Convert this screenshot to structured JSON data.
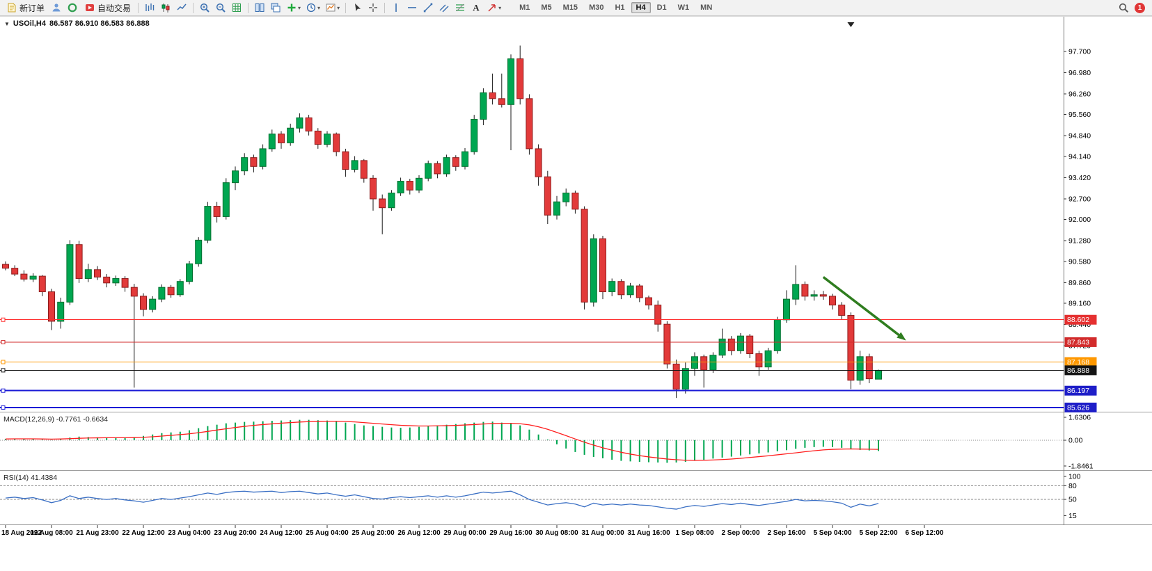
{
  "app": {
    "toolbar": {
      "items": [
        {
          "kind": "button",
          "name": "new-order-button",
          "icon": "new-order-icon",
          "label": "新订单"
        },
        {
          "kind": "icon",
          "name": "accounts-icon"
        },
        {
          "kind": "icon",
          "name": "market-watch-icon"
        },
        {
          "kind": "button",
          "name": "auto-trading-button",
          "icon": "auto-trading-icon",
          "label": "自动交易"
        },
        {
          "kind": "sep"
        },
        {
          "kind": "icon",
          "name": "bar-chart-icon"
        },
        {
          "kind": "icon",
          "name": "candlestick-chart-icon"
        },
        {
          "kind": "icon",
          "name": "line-chart-icon"
        },
        {
          "kind": "sep"
        },
        {
          "kind": "icon",
          "name": "zoom-in-icon"
        },
        {
          "kind": "icon",
          "name": "zoom-out-icon"
        },
        {
          "kind": "icon",
          "name": "grid-icon"
        },
        {
          "kind": "sep"
        },
        {
          "kind": "icon",
          "name": "tile-windows-icon"
        },
        {
          "kind": "icon",
          "name": "cascade-windows-icon"
        },
        {
          "kind": "icon",
          "name": "add-indicator-icon",
          "caret": true
        },
        {
          "kind": "icon",
          "name": "periods-icon",
          "caret": true
        },
        {
          "kind": "icon",
          "name": "templates-icon",
          "caret": true
        },
        {
          "kind": "sep"
        },
        {
          "kind": "icon",
          "name": "cursor-icon"
        },
        {
          "kind": "icon",
          "name": "crosshair-icon"
        },
        {
          "kind": "sep"
        },
        {
          "kind": "icon",
          "name": "vertical-line-icon"
        },
        {
          "kind": "icon",
          "name": "horizontal-line-icon"
        },
        {
          "kind": "icon",
          "name": "trendline-icon"
        },
        {
          "kind": "icon",
          "name": "channel-icon"
        },
        {
          "kind": "icon",
          "name": "fibonacci-icon"
        },
        {
          "kind": "icon",
          "name": "text-label-icon"
        },
        {
          "kind": "icon",
          "name": "arrows-tool-icon",
          "caret": true
        },
        {
          "kind": "tfgroup"
        },
        {
          "kind": "spacer"
        },
        {
          "kind": "icon",
          "name": "search-icon"
        },
        {
          "kind": "badge",
          "name": "notifications-badge",
          "label": "1"
        }
      ],
      "timeframes": [
        {
          "label": "M1"
        },
        {
          "label": "M5"
        },
        {
          "label": "M15"
        },
        {
          "label": "M30"
        },
        {
          "label": "H1"
        },
        {
          "label": "H4",
          "active": true
        },
        {
          "label": "D1"
        },
        {
          "label": "W1"
        },
        {
          "label": "MN"
        }
      ]
    }
  },
  "chart": {
    "title": "USOil,H4",
    "ohlc_text": "86.587 86.910 86.583 86.888"
  },
  "colors": {
    "bull": "#00A651",
    "bull_edge": "#00702F",
    "bear": "#E23A3A",
    "bear_edge": "#8F1D1D",
    "wick": "#1a1a1a",
    "macd_hist": "#00A651",
    "macd_signal": "#FF1E1E",
    "rsi_line": "#3A6FC4",
    "panel_sep": "#9E9E9E",
    "axis_text": "#000000",
    "arrow": "#2F7D1F",
    "level_dash": "#888888"
  },
  "chart_data": {
    "type": "candlestick",
    "symbol": "USOil",
    "period": "H4",
    "current_ohlc": {
      "open": "86.587",
      "high": "86.910",
      "low": "86.583",
      "close": "86.888"
    },
    "price_ticks": [
      "97.700",
      "96.980",
      "96.260",
      "95.560",
      "94.840",
      "94.140",
      "93.420",
      "92.700",
      "92.000",
      "91.280",
      "90.580",
      "89.860",
      "89.160",
      "88.440",
      "87.720"
    ],
    "ylim": [
      85.36,
      98.69
    ],
    "candles": [
      [
        90.48,
        90.58,
        90.28,
        90.35
      ],
      [
        90.35,
        90.45,
        90.08,
        90.15
      ],
      [
        90.15,
        90.28,
        89.9,
        89.98
      ],
      [
        89.98,
        90.18,
        89.88,
        90.08
      ],
      [
        90.08,
        90.12,
        89.4,
        89.55
      ],
      [
        89.55,
        89.65,
        88.25,
        88.55
      ],
      [
        88.55,
        89.35,
        88.3,
        89.2
      ],
      [
        89.2,
        91.3,
        89.1,
        91.15
      ],
      [
        91.15,
        91.28,
        89.85,
        90.0
      ],
      [
        90.0,
        90.5,
        89.88,
        90.3
      ],
      [
        90.3,
        90.42,
        89.95,
        90.05
      ],
      [
        90.05,
        90.15,
        89.7,
        89.85
      ],
      [
        89.85,
        90.1,
        89.75,
        90.0
      ],
      [
        90.0,
        90.08,
        89.55,
        89.7
      ],
      [
        89.7,
        89.82,
        86.3,
        89.4
      ],
      [
        89.4,
        89.5,
        88.72,
        88.95
      ],
      [
        88.95,
        89.4,
        88.85,
        89.3
      ],
      [
        89.3,
        89.8,
        89.2,
        89.7
      ],
      [
        89.7,
        89.78,
        89.35,
        89.45
      ],
      [
        89.45,
        89.98,
        89.38,
        89.9
      ],
      [
        89.9,
        90.6,
        89.8,
        90.5
      ],
      [
        90.5,
        91.4,
        90.4,
        91.3
      ],
      [
        91.3,
        92.6,
        91.2,
        92.45
      ],
      [
        92.45,
        92.6,
        91.9,
        92.1
      ],
      [
        92.1,
        93.4,
        92.0,
        93.25
      ],
      [
        93.25,
        93.8,
        93.0,
        93.65
      ],
      [
        93.65,
        94.25,
        93.5,
        94.1
      ],
      [
        94.1,
        94.2,
        93.6,
        93.8
      ],
      [
        93.8,
        94.55,
        93.7,
        94.4
      ],
      [
        94.4,
        95.05,
        94.3,
        94.9
      ],
      [
        94.9,
        95.0,
        94.4,
        94.6
      ],
      [
        94.6,
        95.25,
        94.5,
        95.1
      ],
      [
        95.1,
        95.6,
        94.95,
        95.45
      ],
      [
        95.45,
        95.55,
        94.85,
        95.0
      ],
      [
        95.0,
        95.1,
        94.4,
        94.55
      ],
      [
        94.55,
        95.0,
        94.45,
        94.9
      ],
      [
        94.9,
        94.95,
        94.15,
        94.3
      ],
      [
        94.3,
        94.4,
        93.45,
        93.7
      ],
      [
        93.7,
        94.15,
        93.6,
        94.0
      ],
      [
        94.0,
        94.05,
        93.25,
        93.4
      ],
      [
        93.4,
        93.5,
        92.3,
        92.7
      ],
      [
        92.7,
        92.85,
        91.5,
        92.4
      ],
      [
        92.4,
        93.0,
        92.3,
        92.9
      ],
      [
        92.9,
        93.42,
        92.8,
        93.3
      ],
      [
        93.3,
        93.38,
        92.85,
        93.0
      ],
      [
        93.0,
        93.5,
        92.9,
        93.4
      ],
      [
        93.4,
        94.0,
        93.3,
        93.9
      ],
      [
        93.9,
        93.98,
        93.4,
        93.55
      ],
      [
        93.55,
        94.2,
        93.45,
        94.1
      ],
      [
        94.1,
        94.18,
        93.65,
        93.8
      ],
      [
        93.8,
        94.42,
        93.7,
        94.3
      ],
      [
        94.3,
        95.55,
        94.2,
        95.4
      ],
      [
        95.4,
        96.45,
        95.2,
        96.3
      ],
      [
        96.3,
        96.95,
        95.9,
        96.1
      ],
      [
        96.1,
        96.95,
        95.8,
        95.9
      ],
      [
        95.9,
        97.6,
        94.35,
        97.45
      ],
      [
        97.45,
        97.9,
        95.9,
        96.1
      ],
      [
        96.1,
        96.25,
        94.2,
        94.4
      ],
      [
        94.4,
        94.55,
        93.15,
        93.45
      ],
      [
        93.45,
        93.65,
        91.85,
        92.15
      ],
      [
        92.15,
        92.8,
        92.0,
        92.6
      ],
      [
        92.6,
        93.05,
        92.45,
        92.9
      ],
      [
        92.9,
        92.98,
        92.2,
        92.35
      ],
      [
        92.35,
        92.45,
        88.95,
        89.2
      ],
      [
        89.2,
        91.5,
        89.05,
        91.35
      ],
      [
        91.35,
        91.45,
        89.3,
        89.55
      ],
      [
        89.55,
        90.0,
        89.4,
        89.9
      ],
      [
        89.9,
        89.98,
        89.3,
        89.45
      ],
      [
        89.45,
        89.85,
        89.35,
        89.75
      ],
      [
        89.75,
        89.82,
        89.2,
        89.35
      ],
      [
        89.35,
        89.42,
        88.95,
        89.1
      ],
      [
        89.1,
        89.25,
        88.2,
        88.45
      ],
      [
        88.45,
        88.55,
        86.95,
        87.1
      ],
      [
        87.1,
        87.25,
        85.95,
        86.25
      ],
      [
        86.25,
        87.15,
        86.1,
        86.95
      ],
      [
        86.95,
        87.5,
        86.7,
        87.35
      ],
      [
        87.35,
        87.42,
        86.3,
        86.9
      ],
      [
        86.9,
        87.5,
        86.8,
        87.4
      ],
      [
        87.4,
        88.3,
        87.3,
        87.95
      ],
      [
        87.95,
        88.05,
        87.4,
        87.55
      ],
      [
        87.55,
        88.15,
        87.45,
        88.05
      ],
      [
        88.05,
        88.12,
        87.3,
        87.45
      ],
      [
        87.45,
        87.55,
        86.7,
        87.0
      ],
      [
        87.0,
        87.65,
        86.9,
        87.55
      ],
      [
        87.55,
        88.7,
        87.45,
        88.6
      ],
      [
        88.6,
        89.6,
        88.5,
        89.3
      ],
      [
        89.3,
        90.45,
        89.1,
        89.8
      ],
      [
        89.8,
        89.9,
        89.25,
        89.4
      ],
      [
        89.4,
        89.6,
        89.25,
        89.45
      ],
      [
        89.45,
        89.58,
        89.28,
        89.4
      ],
      [
        89.4,
        89.48,
        88.95,
        89.1
      ],
      [
        89.1,
        89.2,
        88.6,
        88.75
      ],
      [
        88.75,
        88.85,
        86.25,
        86.55
      ],
      [
        86.55,
        87.55,
        86.4,
        87.35
      ],
      [
        87.35,
        87.45,
        86.45,
        86.6
      ],
      [
        86.587,
        86.91,
        86.583,
        86.888
      ]
    ],
    "time_ticks": {
      "step": 5,
      "labels": [
        "18 Aug 2022",
        "19 Aug 08:00",
        "21 Aug 23:00",
        "22 Aug 12:00",
        "23 Aug 04:00",
        "23 Aug 20:00",
        "24 Aug 12:00",
        "25 Aug 04:00",
        "25 Aug 20:00",
        "26 Aug 12:00",
        "29 Aug 00:00",
        "29 Aug 16:00",
        "30 Aug 08:00",
        "31 Aug 00:00",
        "31 Aug 16:00",
        "1 Sep 08:00",
        "2 Sep 00:00",
        "2 Sep 16:00",
        "5 Sep 04:00",
        "5 Sep 22:00",
        "6 Sep 12:00"
      ]
    },
    "hlines": [
      {
        "price": 88.602,
        "label": "88.602",
        "color": "#FF2D2D",
        "label_bg": "#E53030",
        "lw": 1
      },
      {
        "price": 87.843,
        "label": "87.843",
        "color": "#D22B2B",
        "label_bg": "#D22B2B",
        "lw": 1
      },
      {
        "price": 87.168,
        "label": "87.168",
        "color": "#FF9800",
        "label_bg": "#FF9800",
        "lw": 1
      },
      {
        "price": 86.888,
        "label": "86.888",
        "color": "#141414",
        "label_bg": "#141414",
        "lw": 1
      },
      {
        "price": 86.197,
        "label": "86.197",
        "color": "#1A1AD6",
        "label_bg": "#1E1EC8",
        "lw": 2
      },
      {
        "price": 85.626,
        "label": "85.626",
        "color": "#1A1AD6",
        "label_bg": "#1E1EC8",
        "lw": 2
      }
    ],
    "arrow": {
      "from": {
        "index": 89,
        "price": 90.05
      },
      "to": {
        "index": 98,
        "price": 87.9
      }
    },
    "shift_marker_index": 92,
    "macd": {
      "label": "MACD(12,26,9)",
      "values_text": "-0.7761 -0.6634",
      "scale_labels": [
        {
          "value": 1.6306,
          "text": "1.6306"
        },
        {
          "value": 0,
          "text": "0.00"
        },
        {
          "value": -1.8461,
          "text": "-1.8461"
        }
      ],
      "histogram": [
        0.08,
        0.1,
        0.08,
        0.07,
        0.04,
        0.02,
        0.1,
        0.18,
        0.25,
        0.22,
        0.2,
        0.18,
        0.15,
        0.18,
        0.22,
        0.3,
        0.4,
        0.5,
        0.55,
        0.6,
        0.7,
        0.85,
        1.0,
        1.1,
        1.2,
        1.25,
        1.3,
        1.32,
        1.35,
        1.38,
        1.4,
        1.42,
        1.45,
        1.45,
        1.42,
        1.4,
        1.35,
        1.25,
        1.15,
        1.05,
        1.0,
        0.95,
        0.9,
        0.88,
        0.9,
        0.95,
        1.0,
        1.05,
        1.1,
        1.15,
        1.2,
        1.25,
        1.3,
        1.32,
        1.25,
        1.18,
        1.05,
        0.75,
        0.4,
        0.05,
        -0.3,
        -0.6,
        -0.85,
        -1.05,
        -1.2,
        -1.3,
        -1.4,
        -1.48,
        -1.52,
        -1.55,
        -1.58,
        -1.6,
        -1.62,
        -1.6,
        -1.55,
        -1.48,
        -1.4,
        -1.32,
        -1.25,
        -1.18,
        -1.1,
        -1.02,
        -0.95,
        -0.88,
        -0.8,
        -0.72,
        -0.62,
        -0.55,
        -0.5,
        -0.48,
        -0.5,
        -0.55,
        -0.65,
        -0.7,
        -0.74,
        -0.7761
      ],
      "signal": [
        0.08,
        0.09,
        0.09,
        0.09,
        0.08,
        0.07,
        0.08,
        0.1,
        0.13,
        0.15,
        0.16,
        0.17,
        0.17,
        0.17,
        0.18,
        0.2,
        0.24,
        0.29,
        0.34,
        0.39,
        0.45,
        0.53,
        0.62,
        0.72,
        0.81,
        0.9,
        0.98,
        1.05,
        1.11,
        1.16,
        1.21,
        1.25,
        1.29,
        1.32,
        1.34,
        1.35,
        1.35,
        1.33,
        1.3,
        1.25,
        1.2,
        1.15,
        1.1,
        1.06,
        1.03,
        1.01,
        1.01,
        1.02,
        1.03,
        1.05,
        1.08,
        1.11,
        1.15,
        1.18,
        1.2,
        1.2,
        1.17,
        1.09,
        0.95,
        0.77,
        0.55,
        0.32,
        0.08,
        -0.15,
        -0.36,
        -0.55,
        -0.72,
        -0.87,
        -1.0,
        -1.11,
        -1.2,
        -1.28,
        -1.35,
        -1.4,
        -1.44,
        -1.45,
        -1.44,
        -1.42,
        -1.39,
        -1.35,
        -1.3,
        -1.24,
        -1.18,
        -1.12,
        -1.05,
        -0.98,
        -0.91,
        -0.83,
        -0.76,
        -0.7,
        -0.66,
        -0.64,
        -0.63,
        -0.64,
        -0.65,
        -0.6634
      ]
    },
    "rsi": {
      "label": "RSI(14)",
      "value_text": "41.4384",
      "scale_labels": [
        {
          "value": 100,
          "text": "100"
        },
        {
          "value": 80,
          "text": "80"
        },
        {
          "value": 50,
          "text": "50"
        },
        {
          "value": 15,
          "text": "15"
        }
      ],
      "levels": [
        80,
        50
      ],
      "values": [
        53,
        55,
        52,
        54,
        49,
        43,
        48,
        58,
        52,
        55,
        52,
        50,
        52,
        49,
        47,
        44,
        48,
        52,
        50,
        53,
        56,
        60,
        64,
        61,
        65,
        67,
        68,
        66,
        67,
        68,
        65,
        67,
        68,
        65,
        62,
        64,
        60,
        57,
        60,
        56,
        52,
        51,
        54,
        56,
        54,
        56,
        58,
        55,
        58,
        55,
        58,
        62,
        66,
        64,
        66,
        68,
        60,
        50,
        44,
        38,
        41,
        43,
        40,
        34,
        42,
        38,
        40,
        38,
        40,
        38,
        37,
        34,
        31,
        29,
        34,
        37,
        35,
        38,
        41,
        39,
        42,
        39,
        37,
        40,
        43,
        46,
        50,
        47,
        48,
        47,
        45,
        42,
        33,
        40,
        36,
        41.4384
      ]
    }
  }
}
